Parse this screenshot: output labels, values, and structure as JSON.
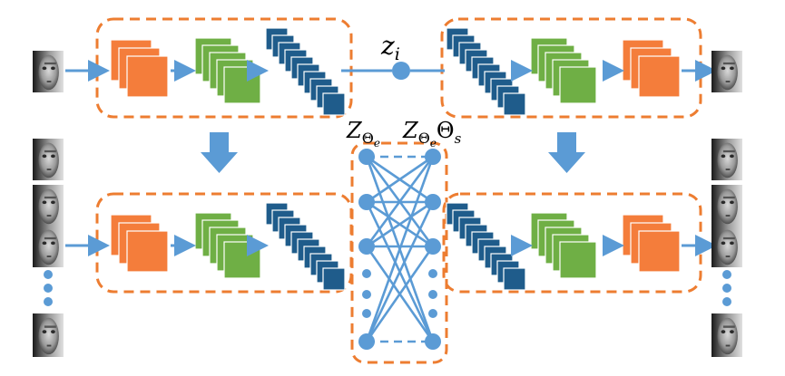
{
  "labels": {
    "latent": "z",
    "latent_sub": "i",
    "encoder_set": "Z",
    "encoder_set_sub": "Θ",
    "encoder_set_subsub": "e",
    "decoder_set": "Z",
    "decoder_set_sub": "Θ",
    "decoder_set_subsub": "e",
    "decoder_set_theta": "Θ",
    "decoder_set_theta_sub": "s"
  },
  "colors": {
    "orange": "#F47D3B",
    "green": "#6FAF45",
    "navy": "#1F5C8B",
    "blue": "#5B9BD5",
    "dash": "#ED7D31"
  },
  "icons": {
    "face": "face-photo-icon",
    "arrow": "down-arrow-icon"
  },
  "network": {
    "left_nodes": 7,
    "right_nodes": 7
  }
}
